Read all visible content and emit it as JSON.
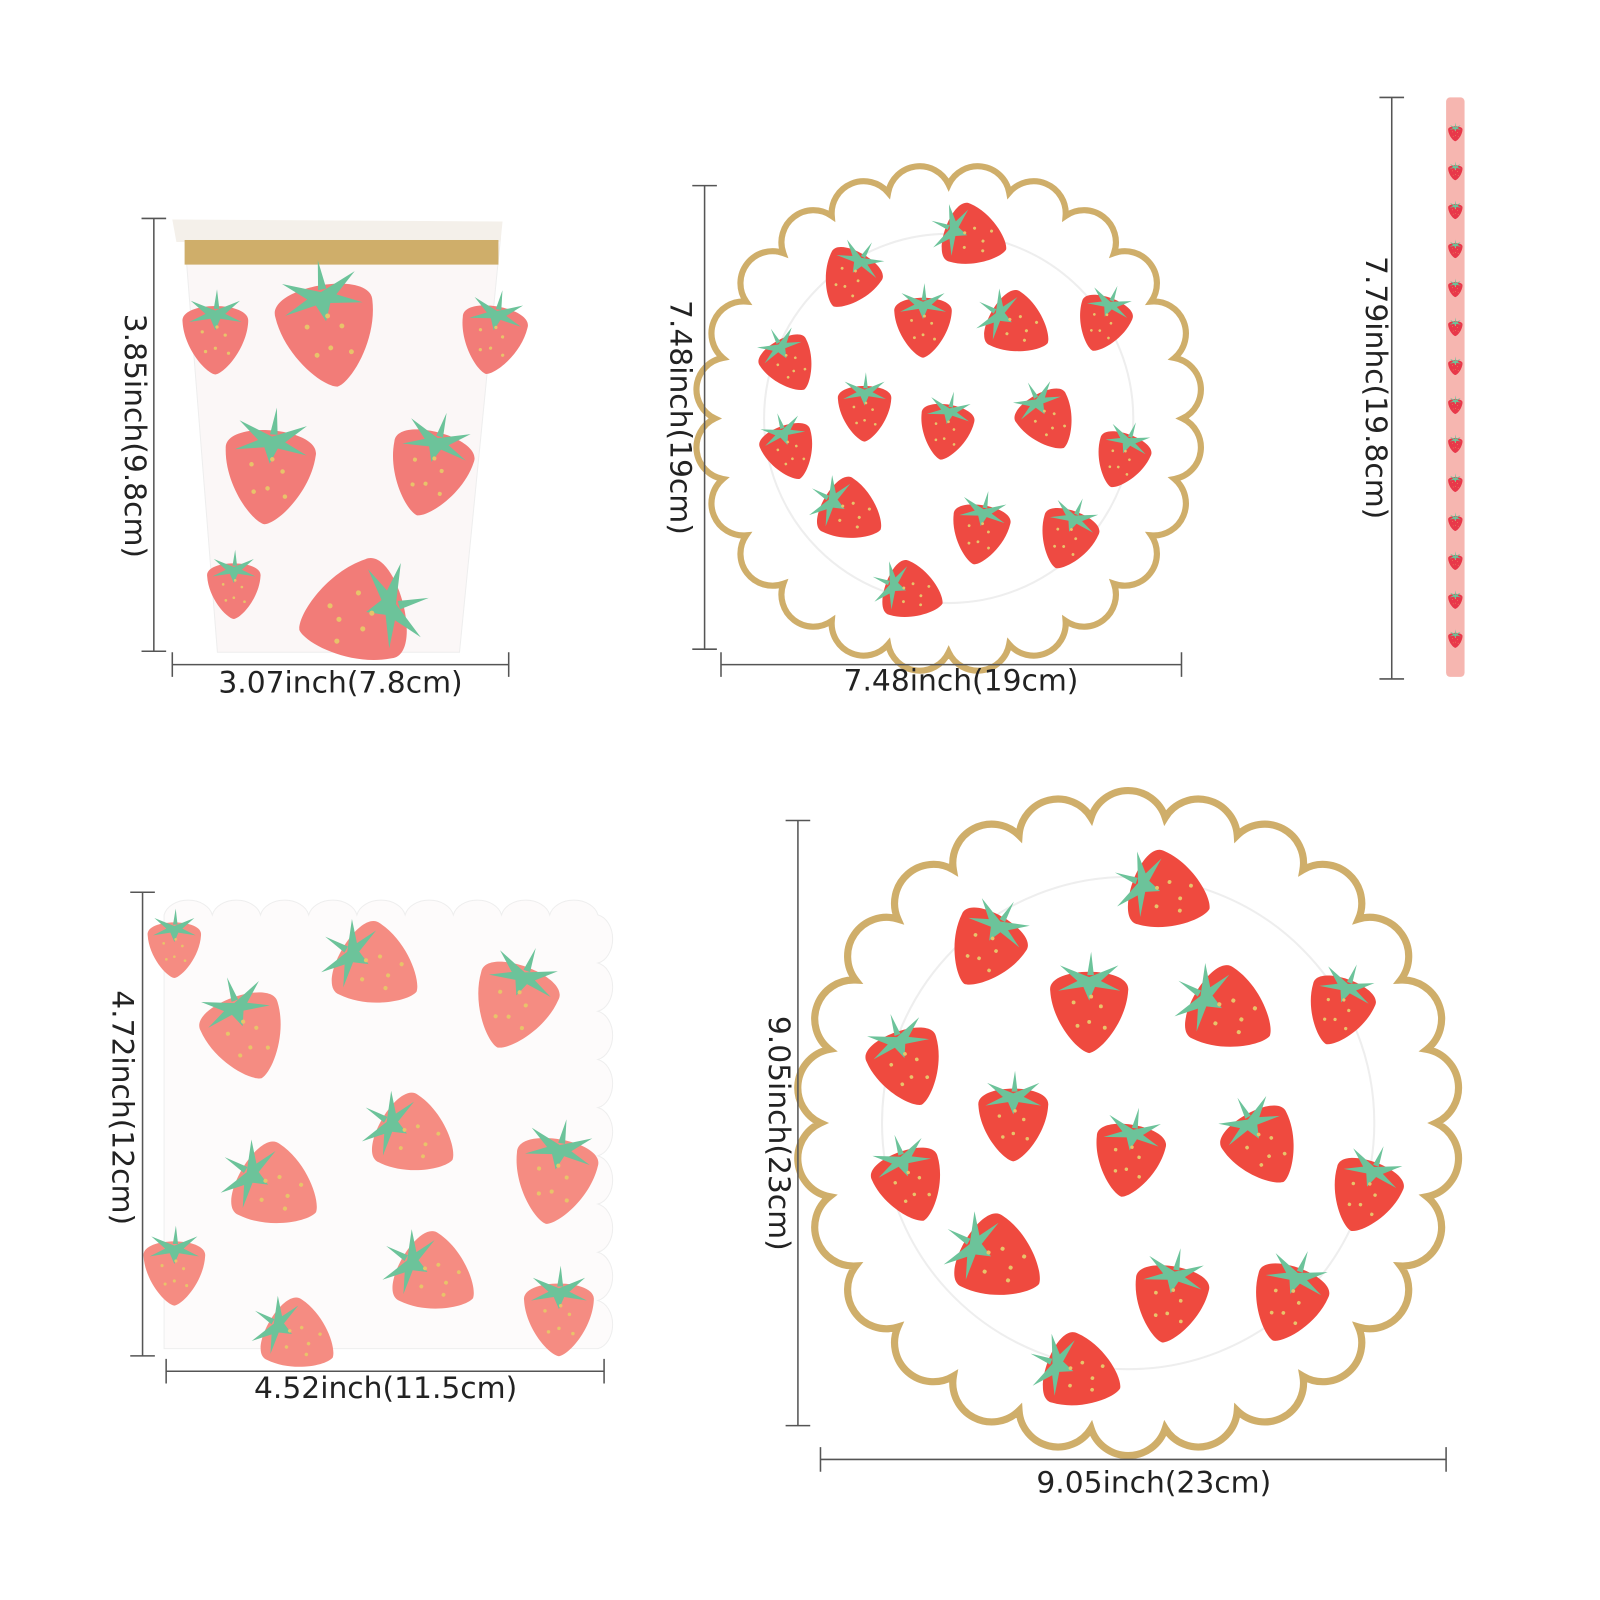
{
  "items": [
    {
      "height_label": "3.85inch(9.8cm)",
      "width_label": "3.07inch(7.8cm)"
    },
    {
      "height_label": "7.48inch(19cm)",
      "width_label": "7.48inch(19cm)"
    },
    {
      "height_label": "7.79inhc(19.8cm)"
    },
    {
      "height_label": "4.72inch(12cm)",
      "width_label": "4.52inch(11.5cm)"
    },
    {
      "height_label": "9.05inch(23cm)",
      "width_label": "9.05inch(23cm)"
    }
  ]
}
